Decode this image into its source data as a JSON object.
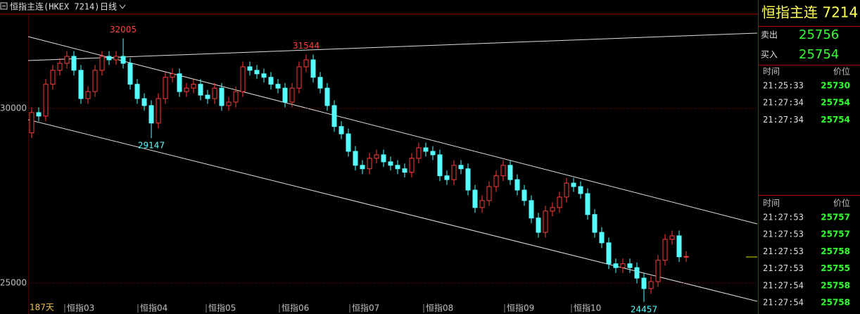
{
  "toolbar": {
    "title": "恒指主连(HKEX 7214)",
    "period": "日线"
  },
  "chart_data": {
    "type": "candlestick",
    "days_label": "187天",
    "x_labels": [
      "恒指03",
      "恒指04",
      "恒指05",
      "恒指06",
      "恒指07",
      "恒指08",
      "恒指09",
      "恒指10"
    ],
    "ylim": [
      24100,
      32700
    ],
    "yticks": [
      25000,
      30000
    ],
    "up_color": "#ff3c3c",
    "down_color": "#54ffff",
    "high_labels": [
      32005,
      31544
    ],
    "low_labels": [
      29147,
      24457
    ],
    "candles": {
      "open": [
        29300,
        29880,
        29780,
        30690,
        31090,
        31290,
        31490,
        31090,
        30280,
        30480,
        31090,
        31490,
        31390,
        31490,
        31290,
        30690,
        30280,
        30080,
        29580,
        30280,
        30890,
        30990,
        30480,
        30580,
        30690,
        30380,
        30280,
        30580,
        30080,
        30180,
        30480,
        31190,
        31090,
        30990,
        30890,
        30690,
        30580,
        30180,
        30580,
        31190,
        31390,
        30890,
        30580,
        30080,
        29480,
        29270,
        28770,
        28370,
        28270,
        28570,
        28670,
        28470,
        28370,
        28270,
        28170,
        28570,
        28870,
        28770,
        28670,
        28070,
        27960,
        28370,
        28270,
        27660,
        27160,
        27360,
        27760,
        28070,
        28370,
        27960,
        27660,
        27360,
        26860,
        26450,
        27060,
        27160,
        27460,
        27860,
        27760,
        27560,
        26960,
        26450,
        26150,
        25550,
        25440,
        25550,
        25440,
        25140,
        24840,
        25040,
        25650,
        26250,
        26350,
        25750
      ],
      "high": [
        30030,
        30030,
        30840,
        31240,
        31440,
        31640,
        31640,
        31240,
        30630,
        31240,
        31640,
        31640,
        31640,
        32005,
        31440,
        30840,
        30430,
        30230,
        30430,
        31040,
        31140,
        31140,
        30730,
        30840,
        30840,
        30530,
        30730,
        30730,
        30330,
        30630,
        31340,
        31340,
        31240,
        31140,
        31040,
        30840,
        30730,
        30730,
        31340,
        31544,
        31540,
        31040,
        30730,
        30230,
        29630,
        29420,
        28920,
        28520,
        28720,
        28820,
        28820,
        28620,
        28520,
        28420,
        28720,
        29020,
        29020,
        28920,
        28820,
        28220,
        28520,
        28520,
        28420,
        27810,
        27510,
        27910,
        28220,
        28520,
        28520,
        28110,
        27810,
        27510,
        27010,
        27210,
        27310,
        27610,
        28010,
        28010,
        27910,
        27710,
        27110,
        26600,
        26300,
        25700,
        25700,
        25700,
        25590,
        25290,
        25190,
        25800,
        26400,
        26500,
        26500,
        25910
      ],
      "low": [
        29150,
        29630,
        29630,
        30540,
        30940,
        31140,
        30940,
        30130,
        30130,
        30330,
        30940,
        31240,
        31240,
        31140,
        30540,
        30130,
        29930,
        29147,
        29430,
        30130,
        30740,
        30330,
        30330,
        30430,
        30230,
        30130,
        30130,
        29930,
        29930,
        30030,
        30330,
        30940,
        30840,
        30740,
        30540,
        30430,
        30030,
        30030,
        30430,
        31040,
        30740,
        30430,
        29930,
        29330,
        29120,
        28620,
        28220,
        28120,
        28120,
        28420,
        28320,
        28220,
        28120,
        28020,
        28020,
        28420,
        28620,
        28520,
        27920,
        27810,
        27810,
        28120,
        27510,
        27010,
        27010,
        27210,
        27610,
        27920,
        27810,
        27510,
        27210,
        26710,
        26300,
        26300,
        26910,
        27010,
        27310,
        27610,
        27410,
        26810,
        26300,
        26000,
        25400,
        25290,
        25290,
        25290,
        24990,
        24457,
        24690,
        24890,
        25500,
        26100,
        25600,
        25600
      ],
      "close": [
        29880,
        29780,
        30690,
        31090,
        31290,
        31490,
        31090,
        30280,
        30480,
        31090,
        31490,
        31390,
        31490,
        31290,
        30690,
        30280,
        30080,
        29580,
        30280,
        30890,
        30990,
        30480,
        30580,
        30690,
        30380,
        30280,
        30580,
        30080,
        30180,
        30480,
        31190,
        31090,
        30990,
        30890,
        30690,
        30580,
        30180,
        30580,
        31190,
        31390,
        30890,
        30580,
        30080,
        29480,
        29270,
        28770,
        28370,
        28270,
        28570,
        28670,
        28470,
        28370,
        28270,
        28170,
        28570,
        28870,
        28770,
        28670,
        28070,
        27960,
        28370,
        28270,
        27660,
        27160,
        27360,
        27760,
        28070,
        28370,
        27960,
        27660,
        27360,
        26860,
        26450,
        27060,
        27160,
        27460,
        27860,
        27760,
        27560,
        26960,
        26450,
        26150,
        25550,
        25440,
        25550,
        25440,
        25140,
        24840,
        25040,
        25650,
        26250,
        26350,
        25750,
        25760
      ]
    }
  },
  "quote_panel": {
    "title": "恒指主连 7214",
    "sell": {
      "label": "卖出",
      "price": 25756
    },
    "buy": {
      "label": "买入",
      "price": 25754
    },
    "ticks1": {
      "header": [
        "时间",
        "价位"
      ],
      "rows": [
        [
          "21:25:33",
          25730
        ],
        [
          "21:27:34",
          25754
        ],
        [
          "21:27:34",
          25754
        ]
      ]
    },
    "ticks2": {
      "header": [
        "时间",
        "价位"
      ],
      "rows": [
        [
          "21:27:53",
          25757
        ],
        [
          "21:27:53",
          25757
        ],
        [
          "21:27:53",
          25758
        ],
        [
          "21:27:53",
          25755
        ],
        [
          "21:27:54",
          25758
        ],
        [
          "21:27:54",
          25758
        ]
      ]
    }
  }
}
